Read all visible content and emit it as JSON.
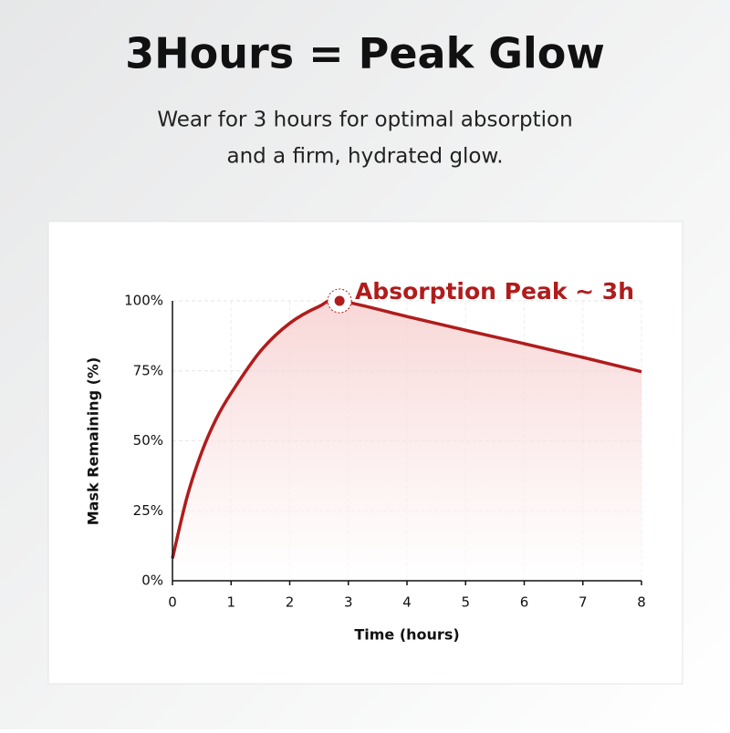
{
  "chart_data": {
    "type": "line",
    "title": "3Hours = Peak Glow",
    "subtitle": [
      "Wear for 3 hours for optimal absorption",
      "and a firm, hydrated glow."
    ],
    "annotation": "Absorption Peak ~ 3h",
    "x_label": "Time (hours)",
    "y_label": "Mask Remaining (%)",
    "xlim": [
      0,
      8
    ],
    "ylim": [
      0,
      100
    ],
    "xticks": [
      0,
      1,
      2,
      3,
      4,
      5,
      6,
      7,
      8
    ],
    "yticks": [
      {
        "value": 0,
        "label": "0%"
      },
      {
        "value": 25,
        "label": "25%"
      },
      {
        "value": 50,
        "label": "50%"
      },
      {
        "value": 75,
        "label": "75%"
      },
      {
        "value": 100,
        "label": "100%"
      }
    ],
    "grid": true,
    "peak_index": 8,
    "series": [
      {
        "color": "#b01c1c",
        "x": [
          0,
          0.25,
          0.5,
          0.75,
          1,
          1.5,
          2,
          2.5,
          2.85,
          4,
          5,
          6,
          7,
          8
        ],
        "values": [
          8,
          30,
          46,
          58,
          67,
          82,
          92,
          98,
          100,
          94.4,
          89.5,
          84.7,
          79.8,
          74.7
        ]
      }
    ]
  }
}
